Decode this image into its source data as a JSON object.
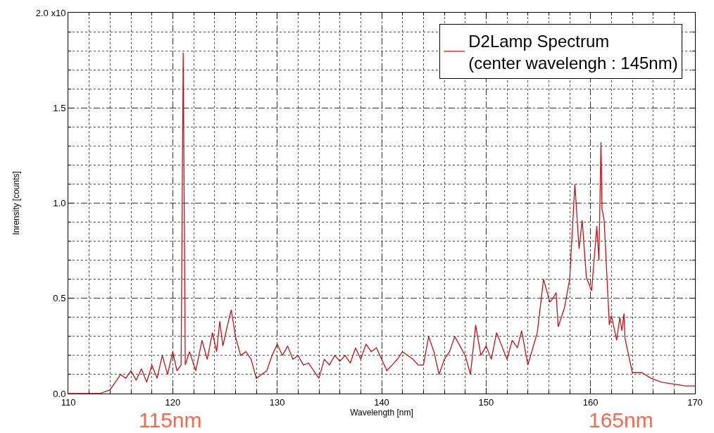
{
  "chart_data": {
    "type": "line",
    "xlabel": "Wavelength [nm]",
    "ylabel": "Inrensity [counts]",
    "xlim": [
      110,
      170
    ],
    "xticks": [
      110,
      120,
      130,
      140,
      150,
      160,
      170
    ],
    "ylim": [
      0,
      2.0
    ],
    "yticks": [
      {
        "value": 0,
        "label": "0.0"
      },
      0.5,
      {
        "value": 1,
        "label": "1.0"
      },
      1.5,
      {
        "value": 2,
        "label": "2.0 x10"
      }
    ],
    "grid": true,
    "legend": "top right",
    "line_style": "solid",
    "annotations": [
      "115nm",
      "165nm"
    ],
    "series": [
      {
        "name": "D2Lamp Spectrum\n(center wavelengh : 145nm)",
        "color": "#c0141a",
        "x": [
          110,
          113,
          114,
          114.5,
          115,
          115.5,
          116,
          116.5,
          117,
          117.5,
          118,
          118.5,
          119,
          119.5,
          120,
          120.4,
          120.8,
          121.0,
          121.2,
          121.6,
          122.2,
          122.8,
          123.3,
          123.8,
          124.2,
          124.5,
          124.8,
          125.2,
          125.6,
          126.0,
          126.5,
          127,
          127.5,
          128,
          128.5,
          129,
          129.5,
          130,
          130.5,
          131,
          131.5,
          132,
          132.5,
          133,
          133.5,
          134,
          134.5,
          135,
          135.5,
          136,
          136.5,
          137,
          137.5,
          138,
          138.5,
          139,
          139.5,
          140,
          140.5,
          141,
          141.5,
          142,
          142.5,
          143,
          143.5,
          144,
          144.5,
          145,
          145.5,
          146,
          146.5,
          147,
          147.5,
          148,
          148.5,
          149,
          149.5,
          150,
          150.5,
          151,
          151.5,
          152,
          152.5,
          153,
          153.4,
          154.0,
          154.9,
          155.5,
          156.1,
          156.4,
          156.7,
          156.9,
          157.5,
          158.0,
          158.5,
          158.9,
          159.2,
          159.6,
          160.1,
          160.6,
          160.8,
          161.0,
          161.1,
          161.3,
          161.8,
          162.0,
          162.5,
          162.8,
          163.0,
          163.2,
          163.3,
          164.0,
          164.9,
          165.8,
          166.8,
          169.1,
          170
        ],
        "values": [
          0,
          0.0,
          0.02,
          0.06,
          0.1,
          0.08,
          0.12,
          0.07,
          0.13,
          0.06,
          0.15,
          0.08,
          0.2,
          0.1,
          0.22,
          0.12,
          0.15,
          1.79,
          0.15,
          0.22,
          0.12,
          0.28,
          0.18,
          0.32,
          0.22,
          0.38,
          0.25,
          0.35,
          0.44,
          0.3,
          0.2,
          0.22,
          0.18,
          0.08,
          0.1,
          0.12,
          0.2,
          0.26,
          0.2,
          0.25,
          0.18,
          0.2,
          0.15,
          0.16,
          0.12,
          0.08,
          0.18,
          0.15,
          0.2,
          0.17,
          0.2,
          0.16,
          0.24,
          0.18,
          0.26,
          0.22,
          0.24,
          0.18,
          0.12,
          0.15,
          0.18,
          0.22,
          0.2,
          0.18,
          0.15,
          0.15,
          0.3,
          0.22,
          0.1,
          0.18,
          0.22,
          0.3,
          0.25,
          0.2,
          0.1,
          0.36,
          0.2,
          0.25,
          0.18,
          0.32,
          0.25,
          0.18,
          0.28,
          0.24,
          0.33,
          0.15,
          0.32,
          0.6,
          0.48,
          0.5,
          0.53,
          0.35,
          0.45,
          0.6,
          1.1,
          0.76,
          0.91,
          0.61,
          0.54,
          0.88,
          0.7,
          1.32,
          0.97,
          0.91,
          0.36,
          0.41,
          0.28,
          0.4,
          0.33,
          0.42,
          0.29,
          0.11,
          0.11,
          0.08,
          0.06,
          0.04,
          0.04
        ]
      }
    ]
  }
}
